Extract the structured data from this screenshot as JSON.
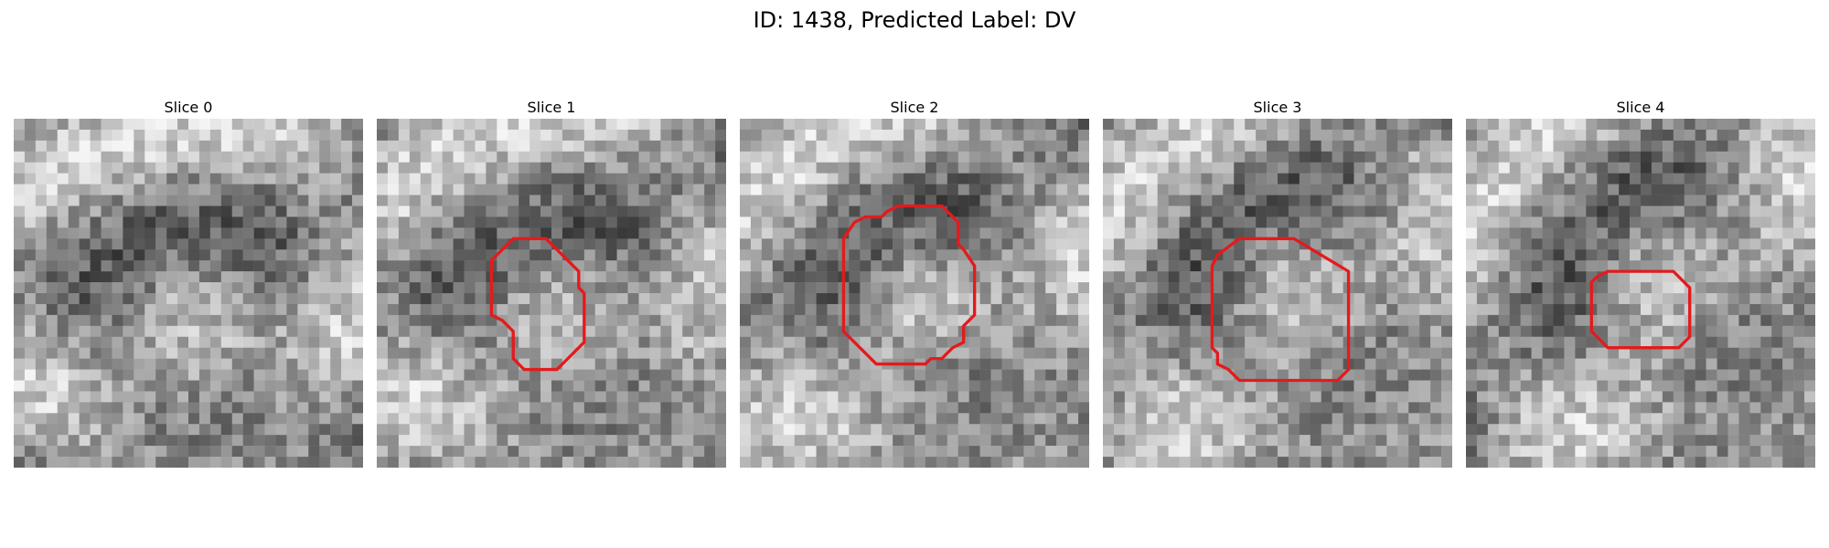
{
  "figure": {
    "title": "ID: 1438, Predicted Label: DV",
    "contour_color": "#e41a1c",
    "slices": [
      {
        "label": "Slice 0",
        "has_contour": false
      },
      {
        "label": "Slice 1",
        "has_contour": true
      },
      {
        "label": "Slice 2",
        "has_contour": true
      },
      {
        "label": "Slice 3",
        "has_contour": true
      },
      {
        "label": "Slice 4",
        "has_contour": true
      }
    ]
  }
}
